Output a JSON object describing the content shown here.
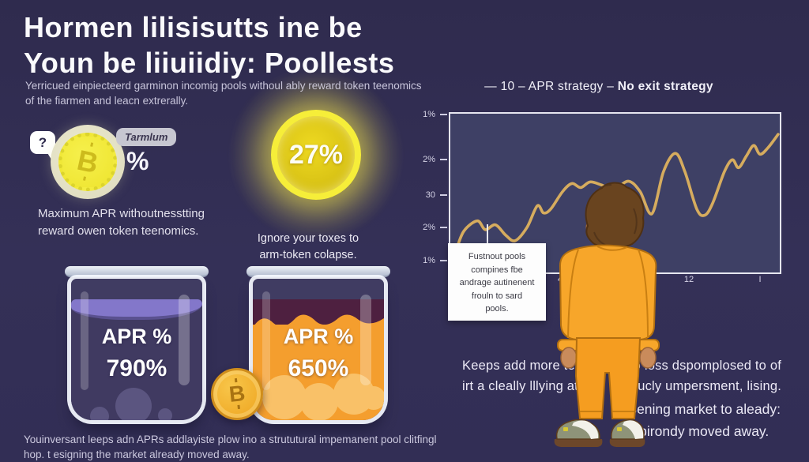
{
  "header": {
    "title_line1": "Hormen lilisisutts ine be",
    "title_line2": "Youn be liiuiidiy: Poollests",
    "subtitle_line1": "Yerricued einpiecteerd garminon incomig pools withoul ably reward token teenomics",
    "subtitle_line2": "of the fiarmen and leacn extrerally."
  },
  "coin_callout": {
    "question_mark": "?",
    "coin_symbol": "B",
    "label": "Tarmlum",
    "percent_sign": "%",
    "caption_line1": "Maximum APR withoutnesstting",
    "caption_line2": "reward owen token teenomics."
  },
  "highlight": {
    "value": "27%",
    "caption_line1": "Ignore your toxes to",
    "caption_line2": "arm-token colapse."
  },
  "jars": [
    {
      "label": "APR %",
      "value": "790%"
    },
    {
      "label": "APR %",
      "value": "650%"
    }
  ],
  "jar_coin": {
    "symbol": "B"
  },
  "callout_box": {
    "lines": [
      "Fustnout pools",
      "compines fbe",
      "andrage autinenent",
      "frouln to sard",
      "pools."
    ]
  },
  "right_text": {
    "para_line1_left": "Keeps add more tenses",
    "para_line1_right": "to loss dspomplosed to of",
    "para_line2_left": "irt a cleally lllying atro",
    "para_line2_right": "strucly umpersment, lising.",
    "note_line1": "Sening market to aleady:",
    "note_line2": "birondy moved away."
  },
  "footer": {
    "line1": "Youinversant leeps adn APRs addlayiste plow ino a strututural impemanent pool clitfingl",
    "line2": "hop. t esigning the market already moved away."
  },
  "colors": {
    "background": "#322e55",
    "glow_yellow": "#f6ee39",
    "coin_gold": "#f2ec3e",
    "jar_left_liquid": "#403a61",
    "jar_left_surface": "#8377ca",
    "jar_right_liquid": "#f49e2e",
    "jar_right_top": "#4e2040",
    "character_orange": "#f7a62a",
    "chart_line": "#d6ac5e",
    "plot_background": "#3e4065"
  },
  "chart_data": {
    "type": "line",
    "title_prefix": "— 10 – APR strategy –",
    "title_emphasis": "No exit strategy",
    "xlabel": "",
    "ylabel": "",
    "y_ticks": [
      "1%",
      "2%",
      "30",
      "2%",
      "1%"
    ],
    "y_tick_pos": [
      1.5,
      29.9,
      52.2,
      72.6,
      93.5
    ],
    "x_ticks": [
      "4",
      "12",
      "I"
    ],
    "x_tick_pos": [
      33.8,
      72.9,
      94.5
    ],
    "grid": false,
    "legend": "none",
    "series": [
      {
        "name": "APR strategy – No exit strategy",
        "color": "#d6ac5e",
        "points": [
          [
            0,
            96.5
          ],
          [
            1.7,
            86.5
          ],
          [
            4.1,
            74
          ],
          [
            8.2,
            67.5
          ],
          [
            10.6,
            73
          ],
          [
            13.7,
            70
          ],
          [
            16.8,
            76.5
          ],
          [
            19.7,
            80
          ],
          [
            23.3,
            71.5
          ],
          [
            26.4,
            58
          ],
          [
            28.3,
            62.5
          ],
          [
            30.5,
            60
          ],
          [
            34.1,
            49
          ],
          [
            36.9,
            44
          ],
          [
            39.6,
            46.5
          ],
          [
            42.4,
            43
          ],
          [
            46,
            45
          ],
          [
            49.6,
            48
          ],
          [
            54,
            42.5
          ],
          [
            57.6,
            49
          ],
          [
            61.2,
            63
          ],
          [
            64.7,
            36.5
          ],
          [
            68.3,
            25
          ],
          [
            71.2,
            36.5
          ],
          [
            74.8,
            60
          ],
          [
            77.2,
            64
          ],
          [
            79.6,
            56.5
          ],
          [
            83.2,
            36.5
          ],
          [
            85.6,
            29
          ],
          [
            87.5,
            34
          ],
          [
            89.9,
            26.5
          ],
          [
            92.1,
            20
          ],
          [
            94,
            25.5
          ],
          [
            96.4,
            21.5
          ],
          [
            99.5,
            13
          ]
        ]
      }
    ]
  }
}
